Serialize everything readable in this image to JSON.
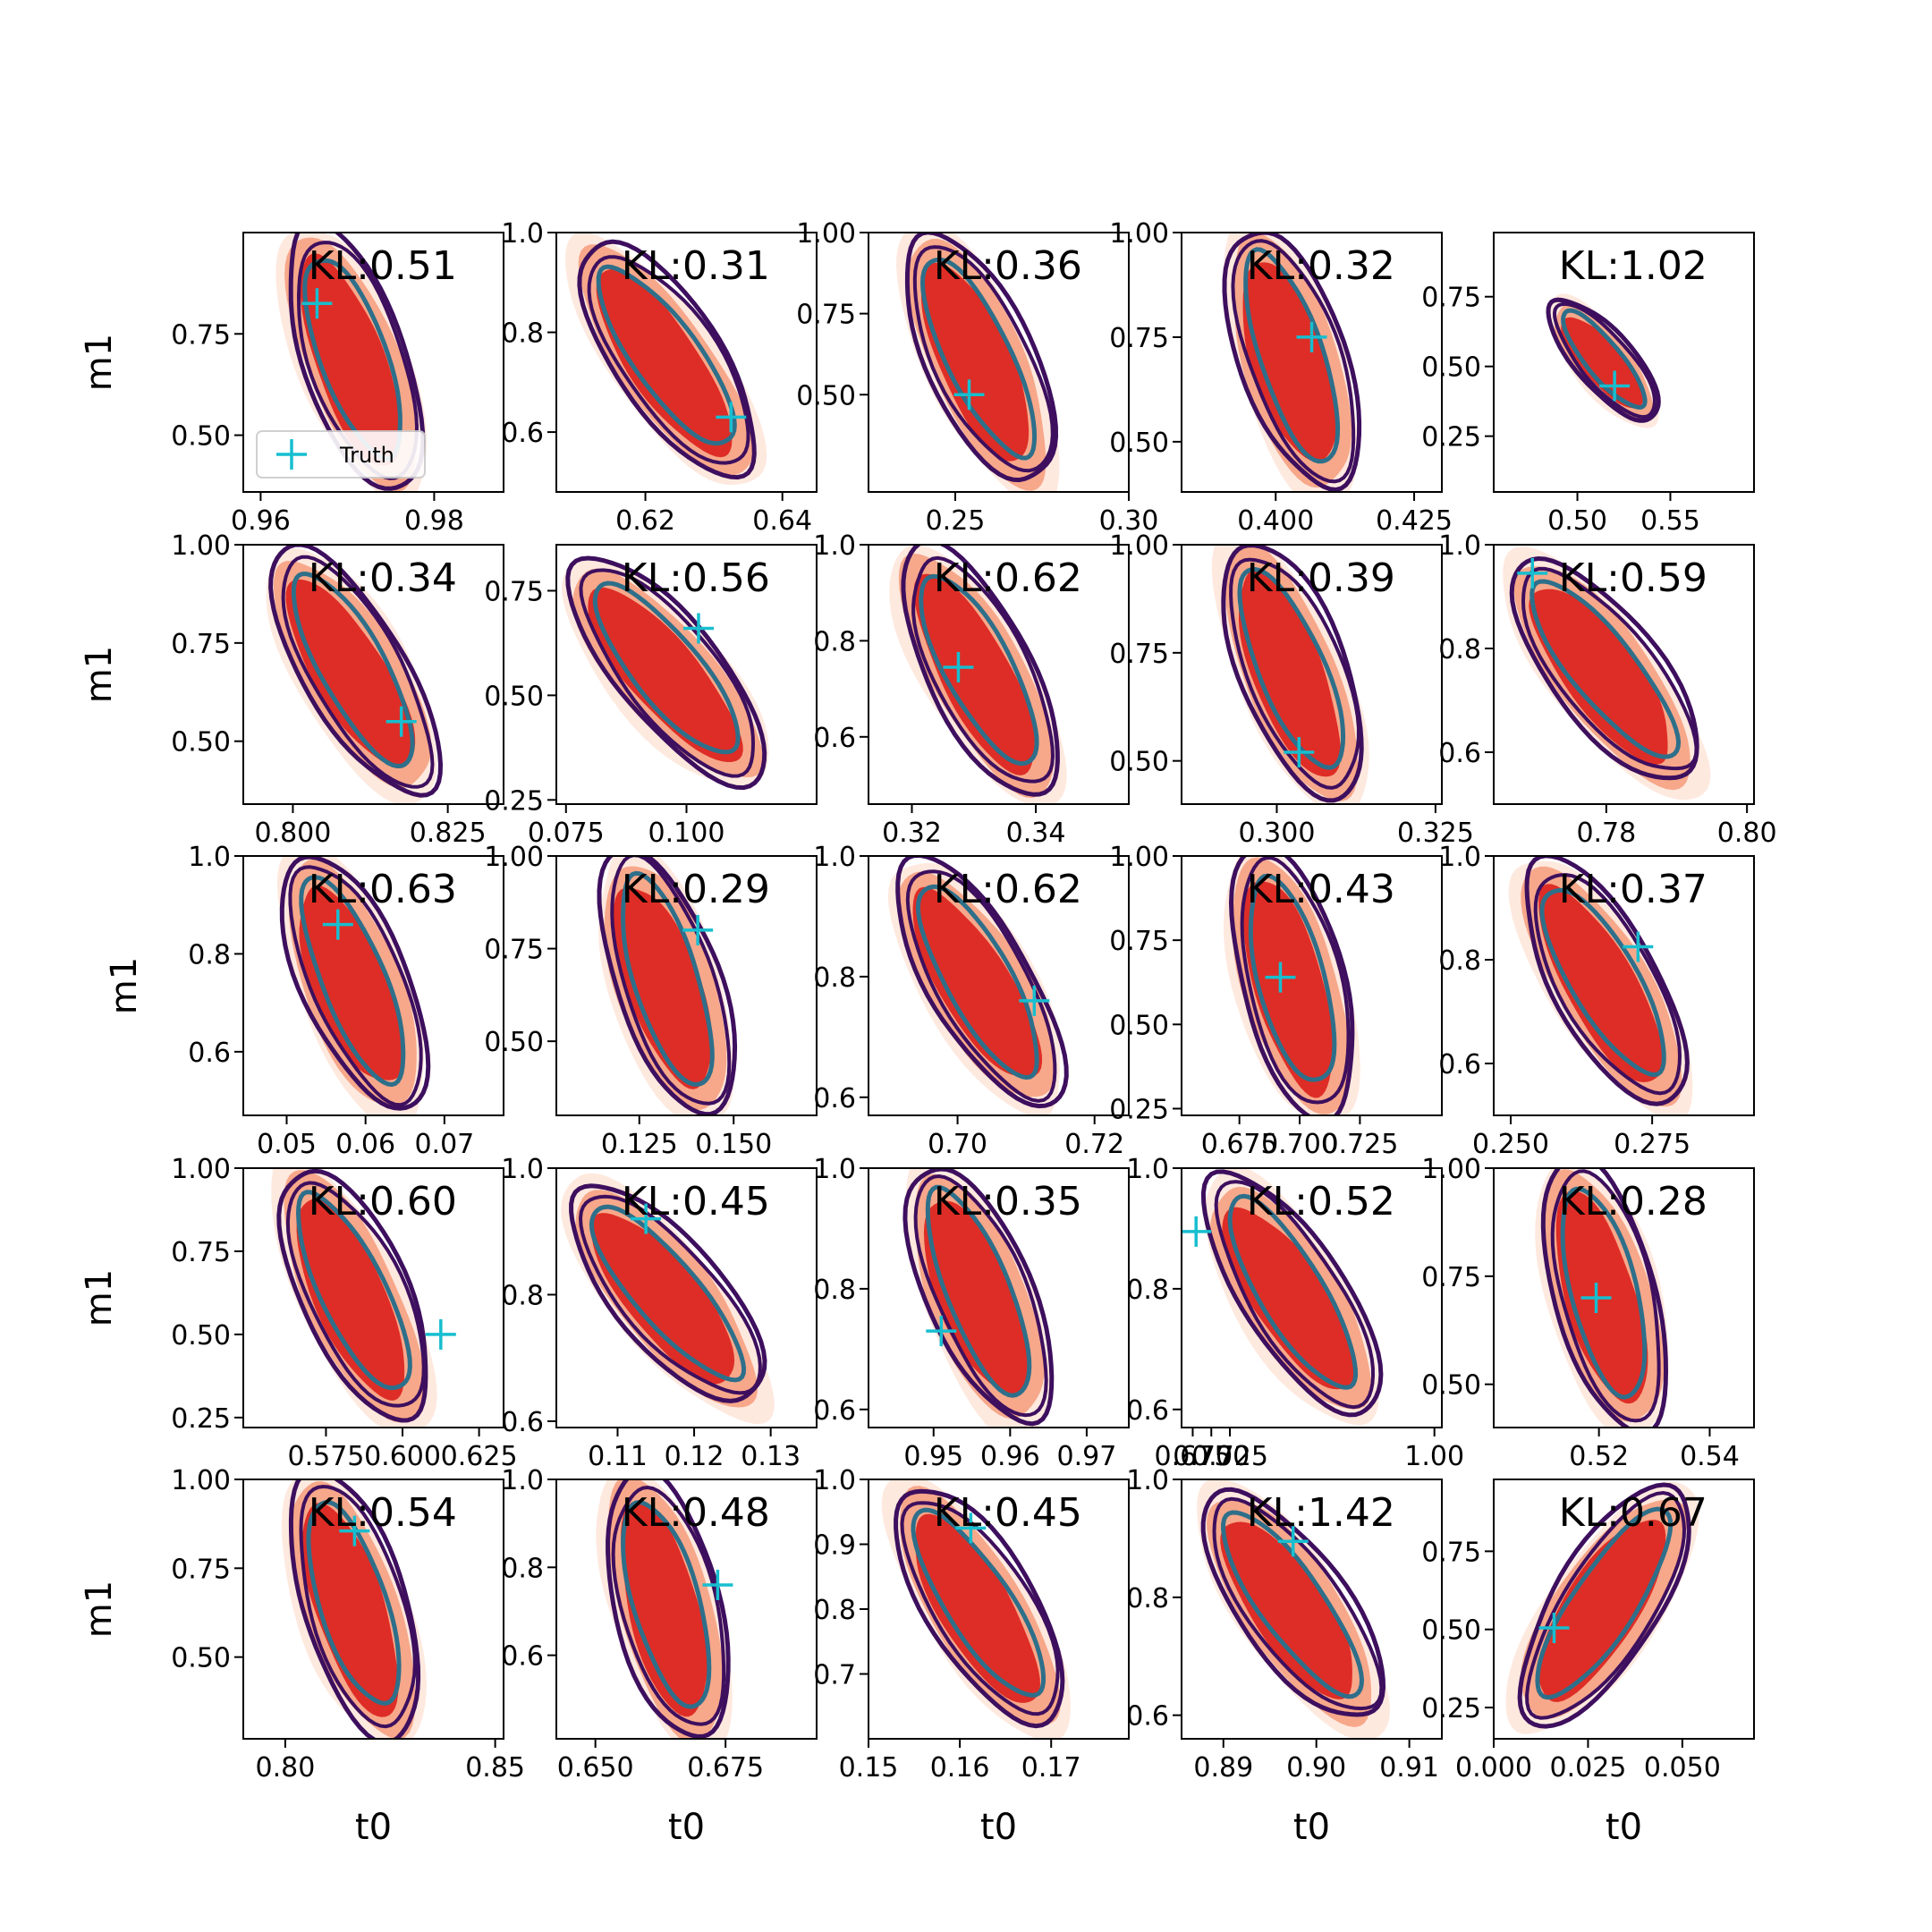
{
  "chart_data": {
    "type": "contour",
    "grid": {
      "rows": 5,
      "cols": 5
    },
    "xlabel": "t0",
    "ylabel": "m1",
    "legend": {
      "label": "Truth",
      "marker": "+",
      "placement": "lower-left",
      "panel": 0
    },
    "colors": {
      "fill_outer": "#fde0d2",
      "fill_mid": "#f7a88a",
      "fill_inner": "#de2d26",
      "contour_outer": "#3d0f5e",
      "contour_inner": "#2e6f8a",
      "truth": "#17becf"
    },
    "panels": [
      {
        "kl": "KL:0.51",
        "xlim": [
          0.958,
          0.988
        ],
        "ylim": [
          0.36,
          1.0
        ],
        "xticks": [
          "0.96",
          "0.98"
        ],
        "yticks": [
          "0.50",
          "0.75"
        ],
        "truth": [
          0.9665,
          0.825
        ],
        "angle": -20,
        "shape": 1
      },
      {
        "kl": "KL:0.31",
        "xlim": [
          0.607,
          0.645
        ],
        "ylim": [
          0.48,
          1.0
        ],
        "xticks": [
          "0.62",
          "0.64"
        ],
        "yticks": [
          "0.6",
          "0.8",
          "1.0"
        ],
        "truth": [
          0.6325,
          0.63
        ],
        "angle": -35,
        "shape": 2
      },
      {
        "kl": "KL:0.36",
        "xlim": [
          0.225,
          0.3
        ],
        "ylim": [
          0.2,
          1.0
        ],
        "xticks": [
          "0.25",
          "0.30"
        ],
        "yticks": [
          "0.50",
          "0.75",
          "1.00"
        ],
        "truth": [
          0.254,
          0.5
        ],
        "angle": -25,
        "shape": 3
      },
      {
        "kl": "KL:0.32",
        "xlim": [
          0.383,
          0.43
        ],
        "ylim": [
          0.38,
          1.0
        ],
        "xticks": [
          "0.400",
          "0.425"
        ],
        "yticks": [
          "0.50",
          "0.75",
          "1.00"
        ],
        "truth": [
          0.4065,
          0.75
        ],
        "angle": -18,
        "shape": 4
      },
      {
        "kl": "KL:1.02",
        "xlim": [
          0.455,
          0.595
        ],
        "ylim": [
          0.05,
          0.98
        ],
        "xticks": [
          "0.50",
          "0.55"
        ],
        "yticks": [
          "0.25",
          "0.50",
          "0.75"
        ],
        "truth": [
          0.52,
          0.43
        ],
        "angle": -40,
        "shape": 5
      },
      {
        "kl": "KL:0.34",
        "xlim": [
          0.792,
          0.834
        ],
        "ylim": [
          0.34,
          1.0
        ],
        "xticks": [
          "0.800",
          "0.825"
        ],
        "yticks": [
          "0.50",
          "0.75",
          "1.00"
        ],
        "truth": [
          0.8175,
          0.55
        ],
        "angle": -30,
        "shape": 6
      },
      {
        "kl": "KL:0.56",
        "xlim": [
          0.073,
          0.127
        ],
        "ylim": [
          0.24,
          0.86
        ],
        "xticks": [
          "0.075",
          "0.100"
        ],
        "yticks": [
          "0.25",
          "0.50",
          "0.75"
        ],
        "truth": [
          0.1025,
          0.66
        ],
        "angle": -40,
        "shape": 7
      },
      {
        "kl": "KL:0.62",
        "xlim": [
          0.313,
          0.355
        ],
        "ylim": [
          0.46,
          1.0
        ],
        "xticks": [
          "0.32",
          "0.34"
        ],
        "yticks": [
          "0.6",
          "0.8",
          "1.0"
        ],
        "truth": [
          0.3275,
          0.745
        ],
        "angle": -28,
        "shape": 8
      },
      {
        "kl": "KL:0.39",
        "xlim": [
          0.285,
          0.326
        ],
        "ylim": [
          0.4,
          1.0
        ],
        "xticks": [
          "0.300",
          "0.325"
        ],
        "yticks": [
          "0.50",
          "0.75",
          "1.00"
        ],
        "truth": [
          0.3035,
          0.52
        ],
        "angle": -22,
        "shape": 9
      },
      {
        "kl": "KL:0.59",
        "xlim": [
          0.764,
          0.801
        ],
        "ylim": [
          0.5,
          1.0
        ],
        "xticks": [
          "0.78",
          "0.80"
        ],
        "yticks": [
          "0.6",
          "0.8",
          "1.0"
        ],
        "truth": [
          0.7695,
          0.945
        ],
        "angle": -38,
        "shape": 10
      },
      {
        "kl": "KL:0.63",
        "xlim": [
          0.0445,
          0.0775
        ],
        "ylim": [
          0.47,
          1.0
        ],
        "xticks": [
          "0.05",
          "0.06",
          "0.07"
        ],
        "yticks": [
          "0.6",
          "0.8",
          "1.0"
        ],
        "truth": [
          0.0565,
          0.86
        ],
        "angle": -22,
        "shape": 11
      },
      {
        "kl": "KL:0.29",
        "xlim": [
          0.103,
          0.172
        ],
        "ylim": [
          0.3,
          1.0
        ],
        "xticks": [
          "0.125",
          "0.150"
        ],
        "yticks": [
          "0.50",
          "0.75",
          "1.00"
        ],
        "truth": [
          0.1405,
          0.8
        ],
        "angle": -18,
        "shape": 12
      },
      {
        "kl": "KL:0.62",
        "xlim": [
          0.687,
          0.725
        ],
        "ylim": [
          0.57,
          1.0
        ],
        "xticks": [
          "0.70",
          "0.72"
        ],
        "yticks": [
          "0.6",
          "0.8",
          "1.0"
        ],
        "truth": [
          0.7112,
          0.76
        ],
        "angle": -30,
        "shape": 13
      },
      {
        "kl": "KL:0.43",
        "xlim": [
          0.651,
          0.759
        ],
        "ylim": [
          0.23,
          1.0
        ],
        "xticks": [
          "0.675",
          "0.700",
          "0.725"
        ],
        "yticks": [
          "0.25",
          "0.50",
          "0.75",
          "1.00"
        ],
        "truth": [
          0.692,
          0.64
        ],
        "angle": -15,
        "shape": 14
      },
      {
        "kl": "KL:0.37",
        "xlim": [
          0.247,
          0.293
        ],
        "ylim": [
          0.5,
          1.0
        ],
        "xticks": [
          "0.250",
          "0.275"
        ],
        "yticks": [
          "0.6",
          "0.8",
          "1.0"
        ],
        "truth": [
          0.2725,
          0.825
        ],
        "angle": -30,
        "shape": 15
      },
      {
        "kl": "KL:0.60",
        "xlim": [
          0.548,
          0.633
        ],
        "ylim": [
          0.22,
          1.0
        ],
        "xticks": [
          "0.575",
          "0.600",
          "0.625"
        ],
        "yticks": [
          "0.25",
          "0.50",
          "0.75",
          "1.00"
        ],
        "truth": [
          0.6125,
          0.5
        ],
        "angle": -25,
        "shape": 16
      },
      {
        "kl": "KL:0.45",
        "xlim": [
          0.102,
          0.136
        ],
        "ylim": [
          0.59,
          1.0
        ],
        "xticks": [
          "0.11",
          "0.12",
          "0.13"
        ],
        "yticks": [
          "0.6",
          "0.8",
          "1.0"
        ],
        "truth": [
          0.1137,
          0.92
        ],
        "angle": -40,
        "shape": 17
      },
      {
        "kl": "KL:0.35",
        "xlim": [
          0.9415,
          0.9755
        ],
        "ylim": [
          0.57,
          1.0
        ],
        "xticks": [
          "0.95",
          "0.96",
          "0.97"
        ],
        "yticks": [
          "0.6",
          "0.8",
          "1.0"
        ],
        "truth": [
          0.951,
          0.73
        ],
        "angle": -22,
        "shape": 18
      },
      {
        "kl": "KL:0.52",
        "xlim": [
          0.66,
          1.01
        ],
        "ylim": [
          0.57,
          1.0
        ],
        "xticks": [
          "0.675",
          "0.700",
          "0.725",
          "1.00"
        ],
        "yticks": [
          "0.6",
          "0.8",
          "1.0"
        ],
        "truth": [
          0.6795,
          0.895
        ],
        "angle": -32,
        "shape": 19
      },
      {
        "kl": "KL:0.28",
        "xlim": [
          0.501,
          0.548
        ],
        "ylim": [
          0.4,
          1.0
        ],
        "xticks": [
          "0.52",
          "0.54"
        ],
        "yticks": [
          "0.50",
          "0.75",
          "1.00"
        ],
        "truth": [
          0.5195,
          0.7
        ],
        "angle": -15,
        "shape": 20
      },
      {
        "kl": "KL:0.54",
        "xlim": [
          0.79,
          0.852
        ],
        "ylim": [
          0.27,
          1.0
        ],
        "xticks": [
          "0.80",
          "0.85"
        ],
        "yticks": [
          "0.50",
          "0.75",
          "1.00"
        ],
        "truth": [
          0.8165,
          0.855
        ],
        "angle": -18,
        "shape": 21
      },
      {
        "kl": "KL:0.48",
        "xlim": [
          0.6425,
          0.6925
        ],
        "ylim": [
          0.41,
          1.0
        ],
        "xticks": [
          "0.650",
          "0.675"
        ],
        "yticks": [
          "0.6",
          "0.8",
          "1.0"
        ],
        "truth": [
          0.6735,
          0.76
        ],
        "angle": -15,
        "shape": 22
      },
      {
        "kl": "KL:0.45",
        "xlim": [
          0.15,
          0.1785
        ],
        "ylim": [
          0.6,
          1.0
        ],
        "xticks": [
          "0.15",
          "0.16",
          "0.17"
        ],
        "yticks": [
          "0.7",
          "0.8",
          "0.9",
          "1.0"
        ],
        "truth": [
          0.1612,
          0.925
        ],
        "angle": -32,
        "shape": 23
      },
      {
        "kl": "KL:1.42",
        "xlim": [
          0.8855,
          0.9135
        ],
        "ylim": [
          0.56,
          1.0
        ],
        "xticks": [
          "0.89",
          "0.90",
          "0.91"
        ],
        "yticks": [
          "0.6",
          "0.8",
          "1.0"
        ],
        "truth": [
          0.8975,
          0.895
        ],
        "angle": -35,
        "shape": 24
      },
      {
        "kl": "KL:0.67",
        "xlim": [
          0.0,
          0.069
        ],
        "ylim": [
          0.15,
          0.98
        ],
        "xticks": [
          "0.000",
          "0.025",
          "0.050"
        ],
        "yticks": [
          "0.25",
          "0.50",
          "0.75"
        ],
        "truth": [
          0.016,
          0.505
        ],
        "angle": 33,
        "shape": 25
      }
    ]
  }
}
